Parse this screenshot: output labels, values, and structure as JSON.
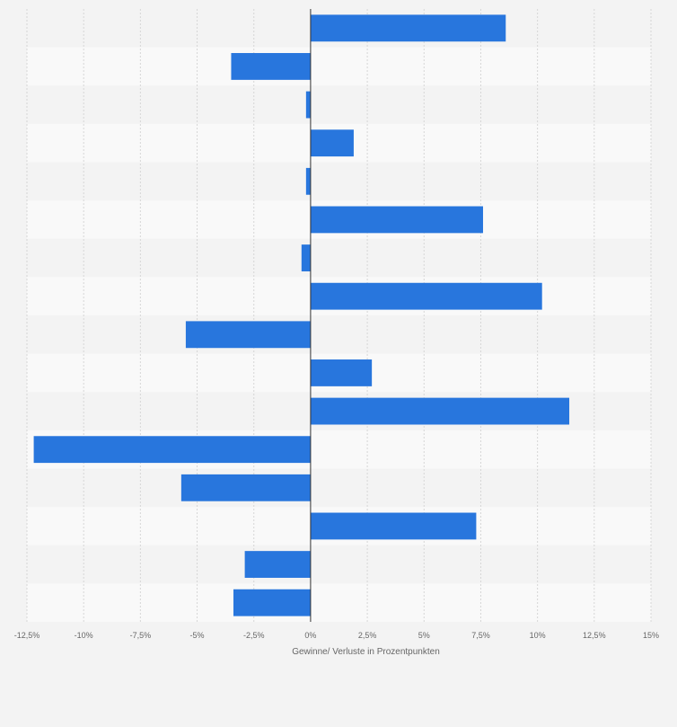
{
  "chart_data": {
    "type": "bar",
    "orientation": "horizontal",
    "title": "",
    "xlabel": "Gewinne/ Verluste in Prozentpunkten",
    "ylabel": "",
    "xlim": [
      -12.5,
      15
    ],
    "x_ticks": [
      -12.5,
      -10,
      -7.5,
      -5,
      -2.5,
      0,
      2.5,
      5,
      7.5,
      10,
      12.5,
      15
    ],
    "x_tick_labels": [
      "-12,5%",
      "-10%",
      "-7,5%",
      "-5%",
      "-2,5%",
      "0%",
      "2,5%",
      "5%",
      "7,5%",
      "10%",
      "12,5%",
      "15%"
    ],
    "category_labels_visible": false,
    "values": [
      8.6,
      -3.5,
      -0.2,
      1.9,
      -0.2,
      7.6,
      -0.4,
      10.2,
      -5.5,
      2.7,
      11.4,
      -12.2,
      -5.7,
      7.3,
      -2.9,
      -3.4
    ],
    "grid": true,
    "legend": "none",
    "colors": {
      "bar": "#2876dd",
      "page_background": "#f3f3f3",
      "band_light": "#f9f9f9",
      "band_dark": "#f3f3f3",
      "grid": "#d6d6d6",
      "zero_line": "#333333",
      "text": "#666666"
    }
  }
}
